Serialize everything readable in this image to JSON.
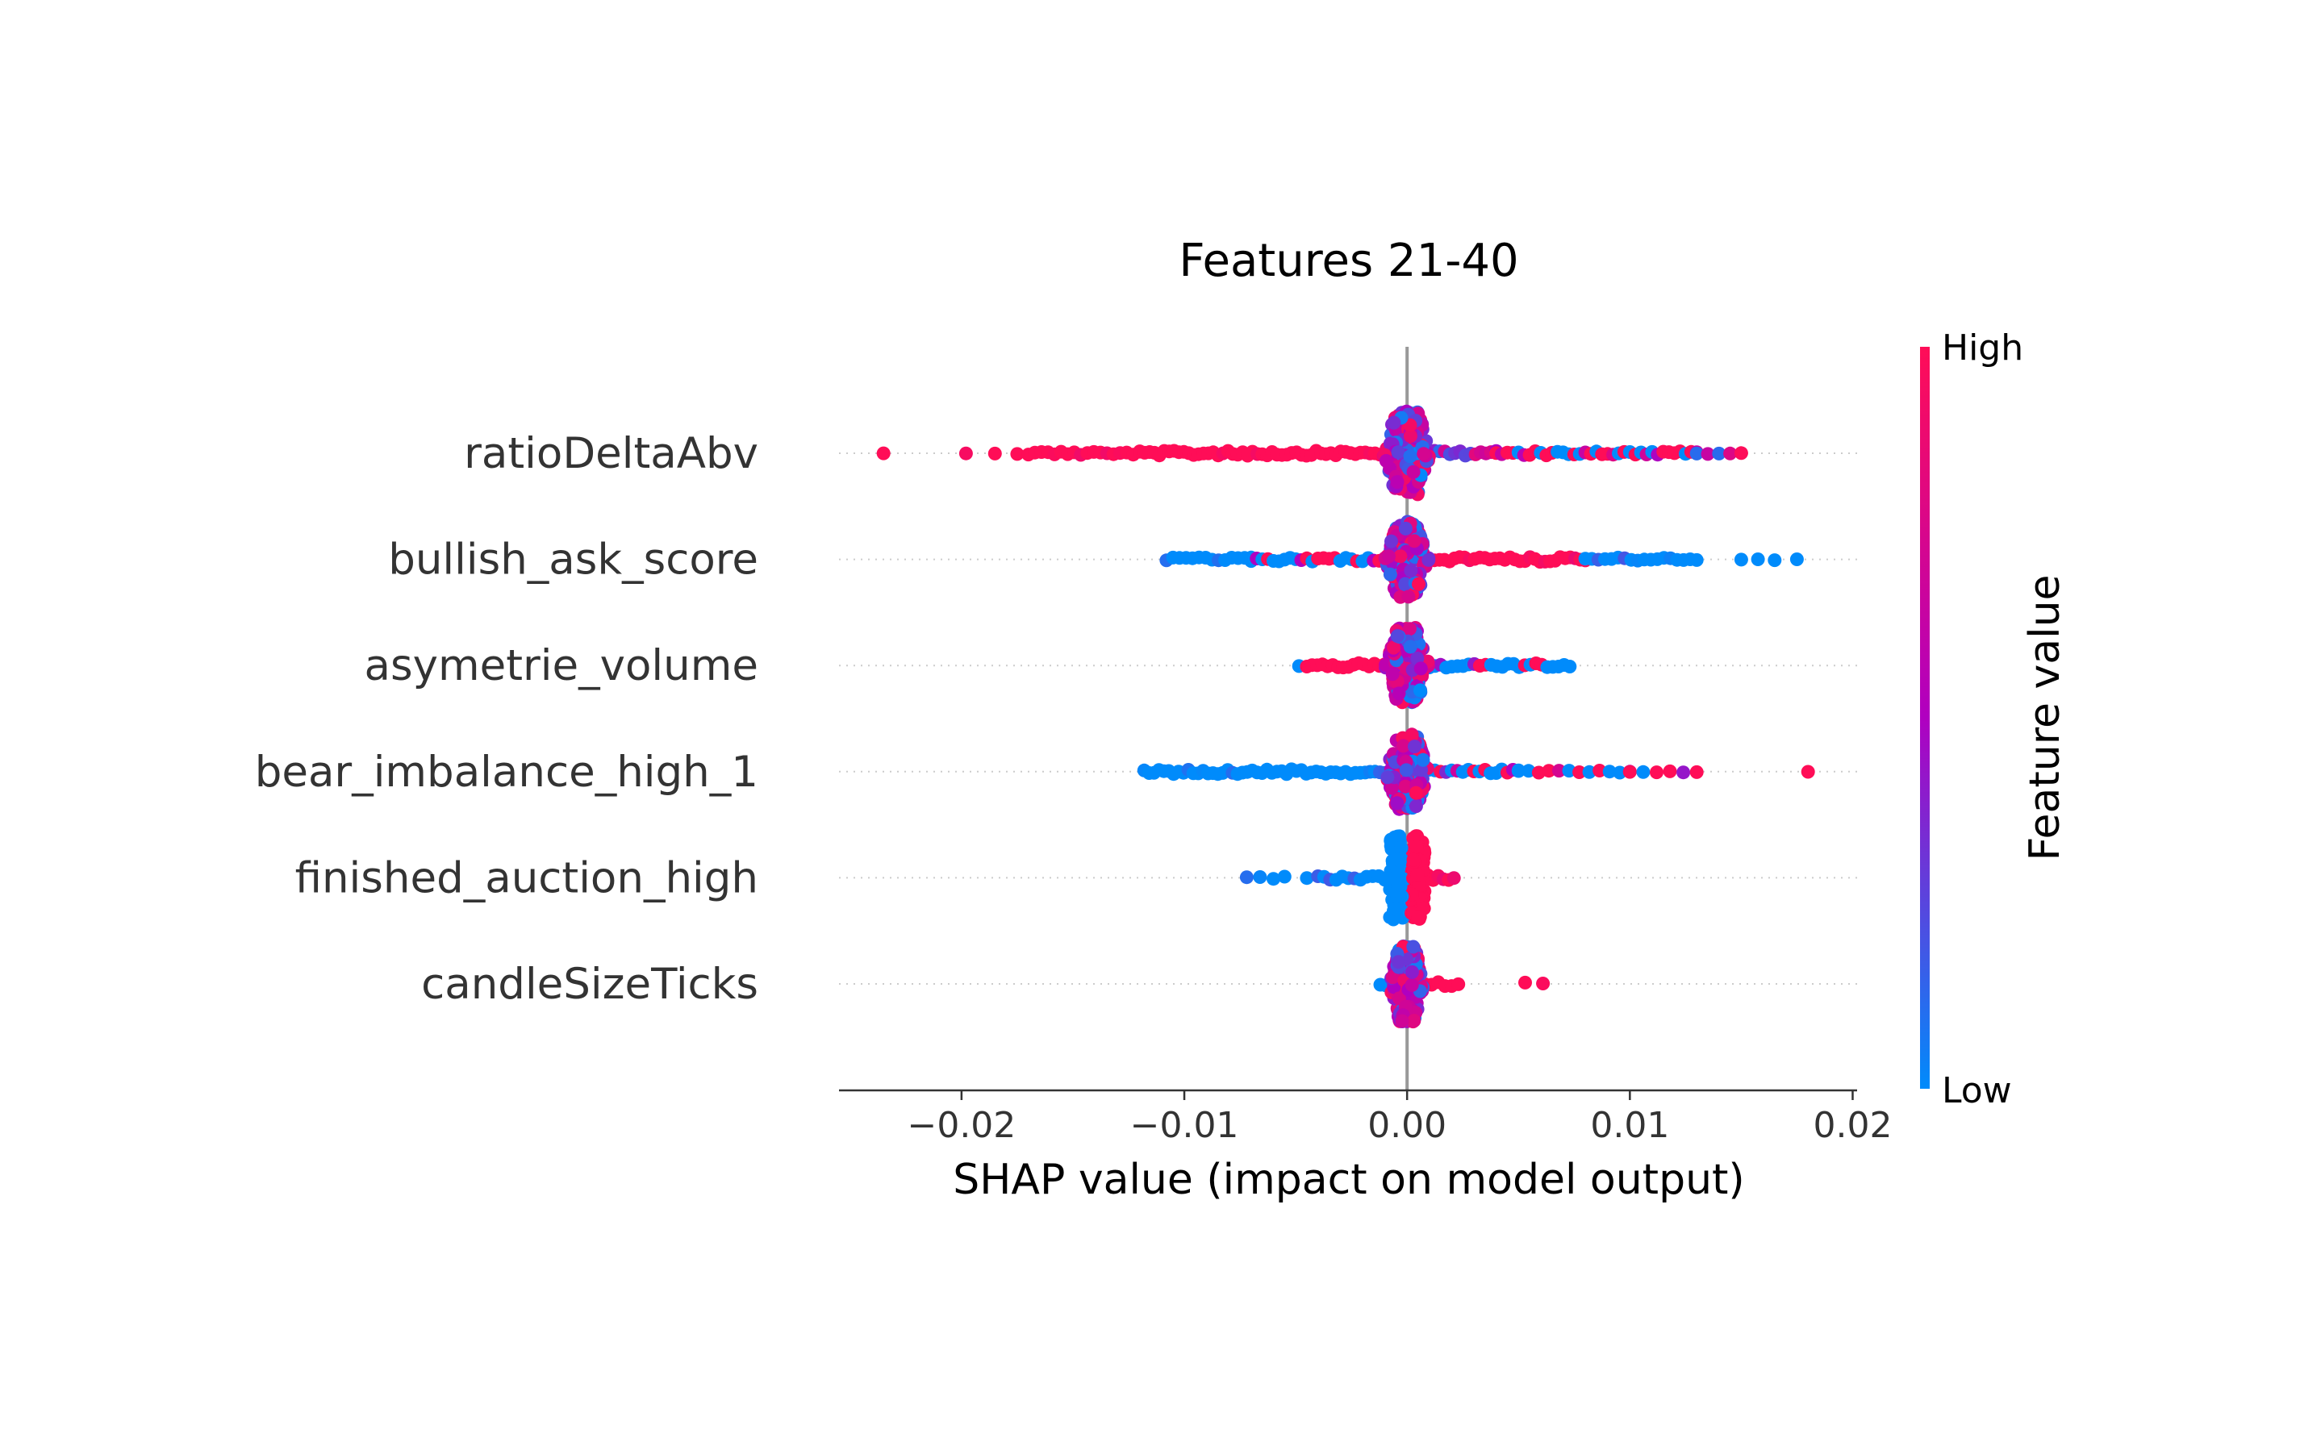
{
  "chart_data": {
    "type": "scatter",
    "subtype": "shap-beeswarm",
    "title": "Features 21-40",
    "xlabel": "SHAP value (impact on model output)",
    "xlim": [
      -0.0255,
      0.0202
    ],
    "xticks": [
      -0.02,
      -0.01,
      0.0,
      0.01,
      0.02
    ],
    "xtick_labels": [
      "−0.02",
      "−0.01",
      "0.00",
      "0.01",
      "0.02"
    ],
    "grid": false,
    "colorbar": {
      "label": "Feature value",
      "high_label": "High",
      "low_label": "Low",
      "high_color": "#ff0d57",
      "mid_color": "#b000c0",
      "low_color": "#008bfb"
    },
    "features": [
      {
        "name": "ratioDeltaAbv",
        "min": -0.0235,
        "max": 0.015,
        "left_color": "high",
        "right_color": "mixed",
        "segments": [
          {
            "x": [
              -0.0235,
              -0.0235
            ],
            "c": "high",
            "d": 0.1
          },
          {
            "x": [
              -0.0201,
              -0.0195
            ],
            "c": "high",
            "d": 0.3
          },
          {
            "x": [
              -0.0185,
              -0.0175
            ],
            "c": "high",
            "d": 0.4
          },
          {
            "x": [
              -0.017,
              -0.012
            ],
            "c": "high",
            "d": 0.8
          },
          {
            "x": [
              -0.012,
              -0.001
            ],
            "c": "high",
            "d": 1.0
          },
          {
            "x": [
              0.001,
              0.004
            ],
            "c": "mixed",
            "d": 1.0
          },
          {
            "x": [
              0.004,
              0.013
            ],
            "c": "highmix",
            "d": 0.9
          },
          {
            "x": [
              0.013,
              0.015
            ],
            "c": "mixed",
            "d": 0.5
          }
        ],
        "core_width": 0.0011,
        "core_height": 1.0
      },
      {
        "name": "bullish_ask_score",
        "min": -0.0108,
        "max": 0.018,
        "segments": [
          {
            "x": [
              -0.0108,
              -0.007
            ],
            "c": "low",
            "d": 0.8
          },
          {
            "x": [
              -0.007,
              -0.001
            ],
            "c": "lowhigh",
            "d": 0.9
          },
          {
            "x": [
              0.001,
              0.008
            ],
            "c": "high",
            "d": 1.0
          },
          {
            "x": [
              0.008,
              0.013
            ],
            "c": "low",
            "d": 0.8
          },
          {
            "x": [
              0.015,
              0.0165
            ],
            "c": "low",
            "d": 0.4
          },
          {
            "x": [
              0.017,
              0.018
            ],
            "c": "low",
            "d": 0.2
          }
        ],
        "core_width": 0.001,
        "core_height": 0.9
      },
      {
        "name": "asymetrie_volume",
        "min": -0.0052,
        "max": 0.0073,
        "segments": [
          {
            "x": [
              -0.0052,
              -0.0045
            ],
            "c": "low",
            "d": 0.4
          },
          {
            "x": [
              -0.0045,
              -0.001
            ],
            "c": "high",
            "d": 1.0
          },
          {
            "x": [
              0.001,
              0.0073
            ],
            "c": "lowmix",
            "d": 0.9
          }
        ],
        "core_width": 0.001,
        "core_height": 0.9
      },
      {
        "name": "bear_imbalance_high_1",
        "min": -0.0118,
        "max": 0.018,
        "segments": [
          {
            "x": [
              -0.0118,
              -0.001
            ],
            "c": "low",
            "d": 1.0
          },
          {
            "x": [
              0.001,
              0.005
            ],
            "c": "lowmix",
            "d": 0.9
          },
          {
            "x": [
              0.005,
              0.01
            ],
            "c": "highmix",
            "d": 0.5
          },
          {
            "x": [
              0.01,
              0.013
            ],
            "c": "highmix",
            "d": 0.4
          },
          {
            "x": [
              0.018,
              0.018
            ],
            "c": "high",
            "d": 0.1
          }
        ],
        "core_width": 0.001,
        "core_height": 0.9
      },
      {
        "name": "finished_auction_high",
        "min": -0.0072,
        "max": 0.0021,
        "segments": [
          {
            "x": [
              -0.0072,
              -0.006
            ],
            "c": "low",
            "d": 0.5
          },
          {
            "x": [
              -0.0055,
              -0.0045
            ],
            "c": "low",
            "d": 0.5
          },
          {
            "x": [
              -0.004,
              -0.001
            ],
            "c": "low",
            "d": 0.9
          },
          {
            "x": [
              0.0,
              0.0021
            ],
            "c": "high",
            "d": 1.0
          }
        ],
        "core_width": 0.0008,
        "core_height": 1.0,
        "core_split": true
      },
      {
        "name": "candleSizeTicks",
        "min": -0.0012,
        "max": 0.0061,
        "segments": [
          {
            "x": [
              -0.0012,
              0.0005
            ],
            "c": "low",
            "d": 1.0
          },
          {
            "x": [
              0.0005,
              0.0023
            ],
            "c": "high",
            "d": 0.9
          },
          {
            "x": [
              0.0053,
              0.0061
            ],
            "c": "high",
            "d": 0.6
          }
        ],
        "core_width": 0.0008,
        "core_height": 0.9
      }
    ]
  }
}
